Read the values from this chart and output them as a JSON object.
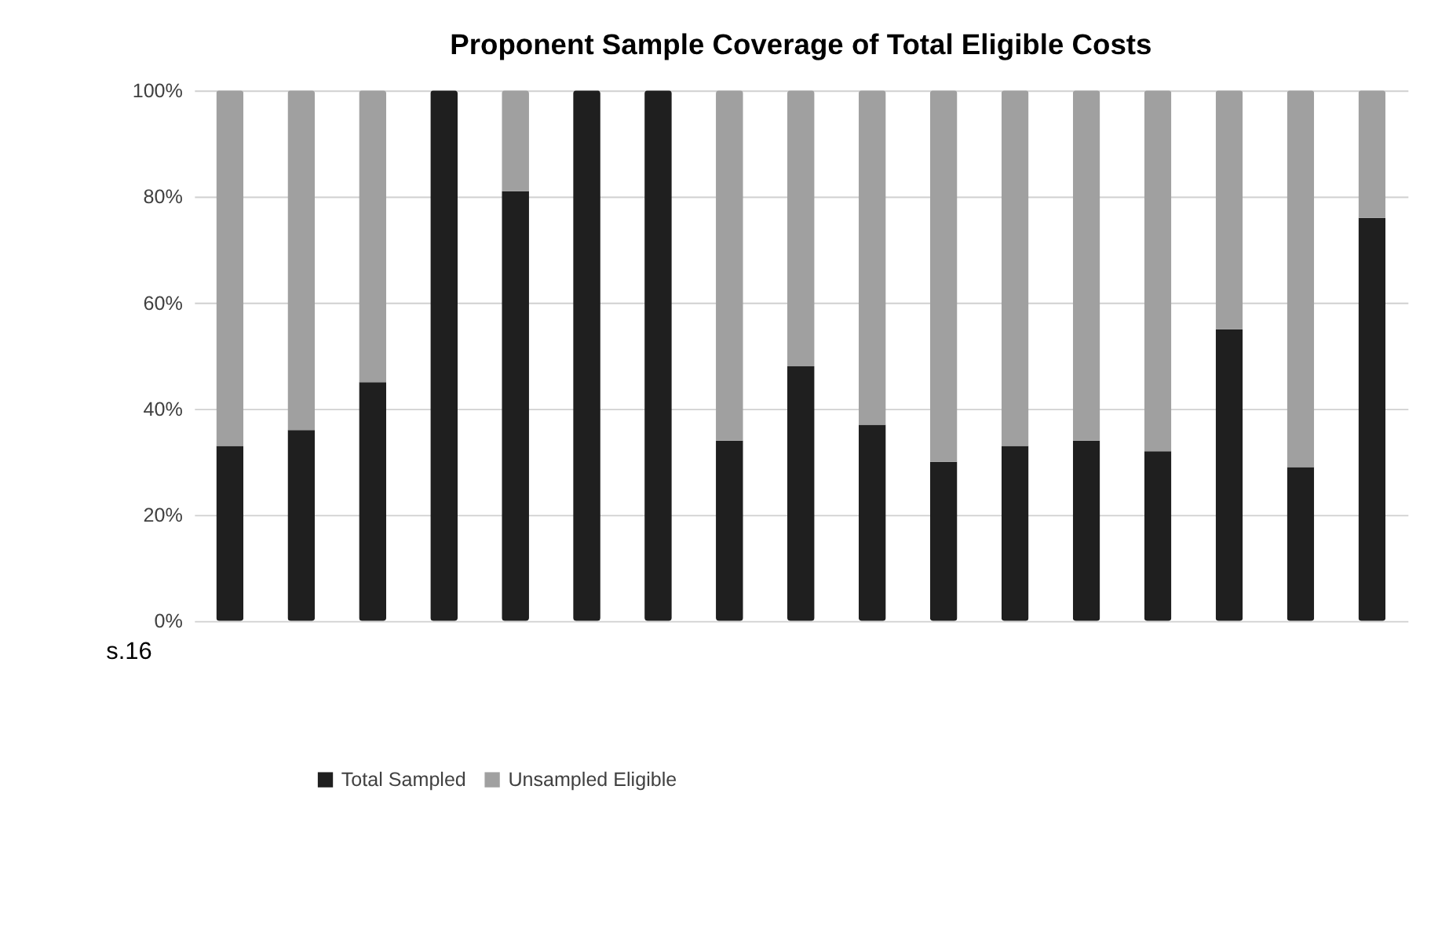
{
  "chart_data": {
    "type": "bar",
    "title": "Proponent Sample Coverage of Total Eligible Costs",
    "categories": [
      null,
      null,
      null,
      null,
      null,
      null,
      null,
      null,
      null,
      null,
      null,
      null,
      null,
      null,
      null,
      null,
      null
    ],
    "stacked": true,
    "series": [
      {
        "name": "Total Sampled",
        "color": "#1f1f1f",
        "values": [
          33,
          36,
          45,
          100,
          81,
          100,
          100,
          34,
          48,
          37,
          30,
          33,
          34,
          32,
          55,
          29,
          76
        ]
      },
      {
        "name": "Unsampled Eligible",
        "color": "#a0a0a0",
        "values": [
          67,
          64,
          55,
          0,
          19,
          0,
          0,
          66,
          52,
          63,
          70,
          67,
          66,
          68,
          45,
          71,
          24
        ]
      }
    ],
    "ylim": [
      0,
      100
    ],
    "yticks": [
      {
        "value": 0,
        "label": "0%"
      },
      {
        "value": 20,
        "label": "20%"
      },
      {
        "value": 40,
        "label": "40%"
      },
      {
        "value": 60,
        "label": "60%"
      },
      {
        "value": 80,
        "label": "80%"
      },
      {
        "value": 100,
        "label": "100%"
      }
    ],
    "tick_labels": "y",
    "grid": "y",
    "legend": "bottom",
    "annotations": [
      "s.16"
    ]
  }
}
